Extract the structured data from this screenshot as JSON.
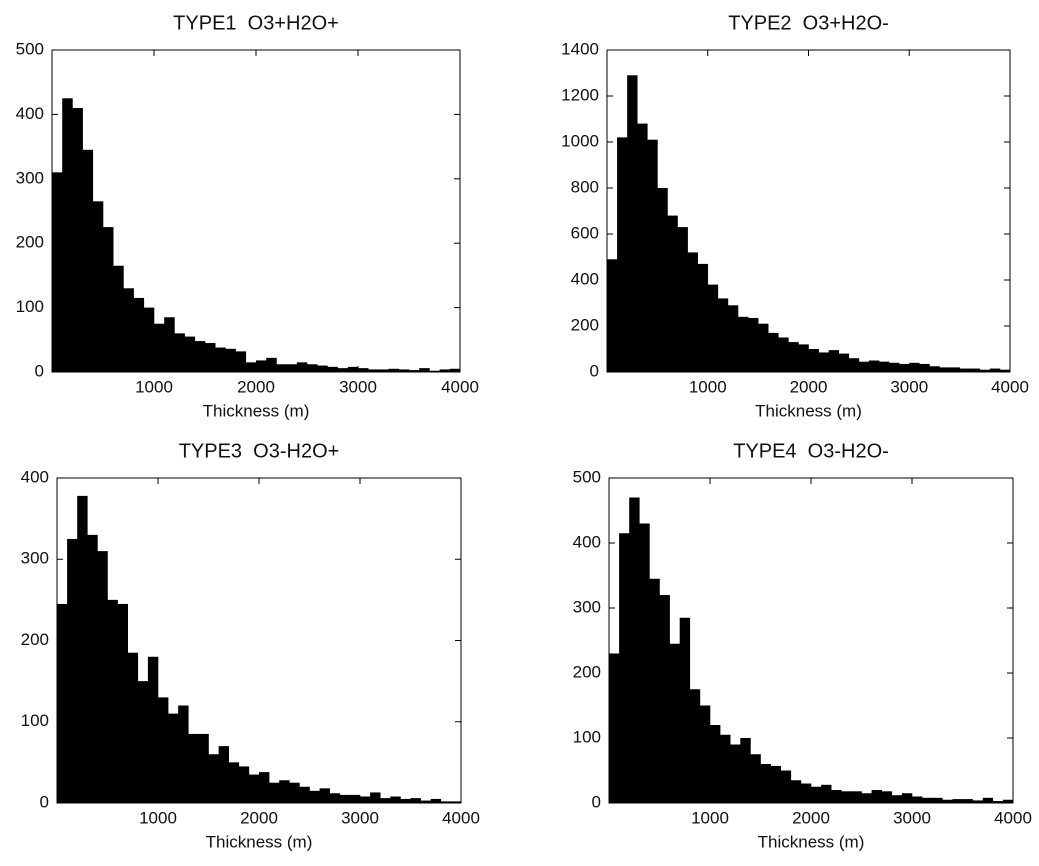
{
  "chart_data": [
    {
      "type": "histogram",
      "title": "TYPE1  O3+H2O+",
      "xlabel": "Thickness (m)",
      "color": "#000000",
      "bins": [
        0,
        100,
        200,
        300,
        400,
        500,
        600,
        700,
        800,
        900,
        1000,
        1100,
        1200,
        1300,
        1400,
        1500,
        1600,
        1700,
        1800,
        1900,
        2000,
        2100,
        2200,
        2300,
        2400,
        2500,
        2600,
        2700,
        2800,
        2900,
        3000,
        3100,
        3200,
        3300,
        3400,
        3500,
        3600,
        3700,
        3800,
        3900,
        4000
      ],
      "values": [
        310,
        425,
        410,
        345,
        265,
        225,
        165,
        130,
        115,
        100,
        75,
        85,
        60,
        55,
        48,
        45,
        38,
        36,
        32,
        15,
        18,
        22,
        12,
        12,
        15,
        12,
        10,
        8,
        6,
        8,
        6,
        4,
        4,
        5,
        4,
        3,
        6,
        2,
        4,
        5
      ],
      "xlim": [
        0,
        4000
      ],
      "xticks": [
        1000,
        2000,
        3000,
        4000
      ],
      "ylim": [
        0,
        500
      ],
      "yticks": [
        0,
        100,
        200,
        300,
        400,
        500
      ]
    },
    {
      "type": "histogram",
      "title": "TYPE2  O3+H2O-",
      "xlabel": "Thickness (m)",
      "color": "#000000",
      "bins": [
        0,
        100,
        200,
        300,
        400,
        500,
        600,
        700,
        800,
        900,
        1000,
        1100,
        1200,
        1300,
        1400,
        1500,
        1600,
        1700,
        1800,
        1900,
        2000,
        2100,
        2200,
        2300,
        2400,
        2500,
        2600,
        2700,
        2800,
        2900,
        3000,
        3100,
        3200,
        3300,
        3400,
        3500,
        3600,
        3700,
        3800,
        3900,
        4000
      ],
      "values": [
        490,
        1020,
        1290,
        1080,
        1010,
        800,
        680,
        630,
        520,
        470,
        380,
        320,
        290,
        240,
        235,
        210,
        170,
        150,
        130,
        120,
        100,
        85,
        95,
        80,
        60,
        45,
        50,
        45,
        40,
        35,
        40,
        35,
        25,
        20,
        20,
        15,
        15,
        10,
        15,
        10
      ],
      "xlim": [
        0,
        4000
      ],
      "xticks": [
        1000,
        2000,
        3000,
        4000
      ],
      "ylim": [
        0,
        1400
      ],
      "yticks": [
        0,
        200,
        400,
        600,
        800,
        1000,
        1200,
        1400
      ]
    },
    {
      "type": "histogram",
      "title": "TYPE3  O3-H2O+",
      "xlabel": "Thickness (m)",
      "color": "#000000",
      "bins": [
        0,
        100,
        200,
        300,
        400,
        500,
        600,
        700,
        800,
        900,
        1000,
        1100,
        1200,
        1300,
        1400,
        1500,
        1600,
        1700,
        1800,
        1900,
        2000,
        2100,
        2200,
        2300,
        2400,
        2500,
        2600,
        2700,
        2800,
        2900,
        3000,
        3100,
        3200,
        3300,
        3400,
        3500,
        3600,
        3700,
        3800,
        3900,
        4000
      ],
      "values": [
        245,
        325,
        378,
        330,
        310,
        250,
        245,
        185,
        150,
        180,
        130,
        110,
        120,
        85,
        85,
        60,
        70,
        50,
        45,
        35,
        38,
        25,
        28,
        25,
        20,
        15,
        18,
        12,
        10,
        10,
        8,
        13,
        6,
        8,
        5,
        6,
        3,
        5,
        2,
        2
      ],
      "xlim": [
        0,
        4000
      ],
      "xticks": [
        1000,
        2000,
        3000,
        4000
      ],
      "ylim": [
        0,
        400
      ],
      "yticks": [
        0,
        100,
        200,
        300,
        400
      ]
    },
    {
      "type": "histogram",
      "title": "TYPE4  O3-H2O-",
      "xlabel": "Thickness (m)",
      "color": "#000000",
      "bins": [
        0,
        100,
        200,
        300,
        400,
        500,
        600,
        700,
        800,
        900,
        1000,
        1100,
        1200,
        1300,
        1400,
        1500,
        1600,
        1700,
        1800,
        1900,
        2000,
        2100,
        2200,
        2300,
        2400,
        2500,
        2600,
        2700,
        2800,
        2900,
        3000,
        3100,
        3200,
        3300,
        3400,
        3500,
        3600,
        3700,
        3800,
        3900,
        4000
      ],
      "values": [
        230,
        415,
        470,
        430,
        345,
        320,
        245,
        285,
        175,
        150,
        120,
        105,
        90,
        100,
        75,
        60,
        57,
        50,
        35,
        30,
        25,
        28,
        20,
        18,
        18,
        15,
        20,
        18,
        12,
        15,
        10,
        8,
        8,
        5,
        6,
        6,
        4,
        8,
        3,
        5
      ],
      "xlim": [
        0,
        4000
      ],
      "xticks": [
        1000,
        2000,
        3000,
        4000
      ],
      "ylim": [
        0,
        500
      ],
      "yticks": [
        0,
        100,
        200,
        300,
        400,
        500
      ]
    }
  ]
}
